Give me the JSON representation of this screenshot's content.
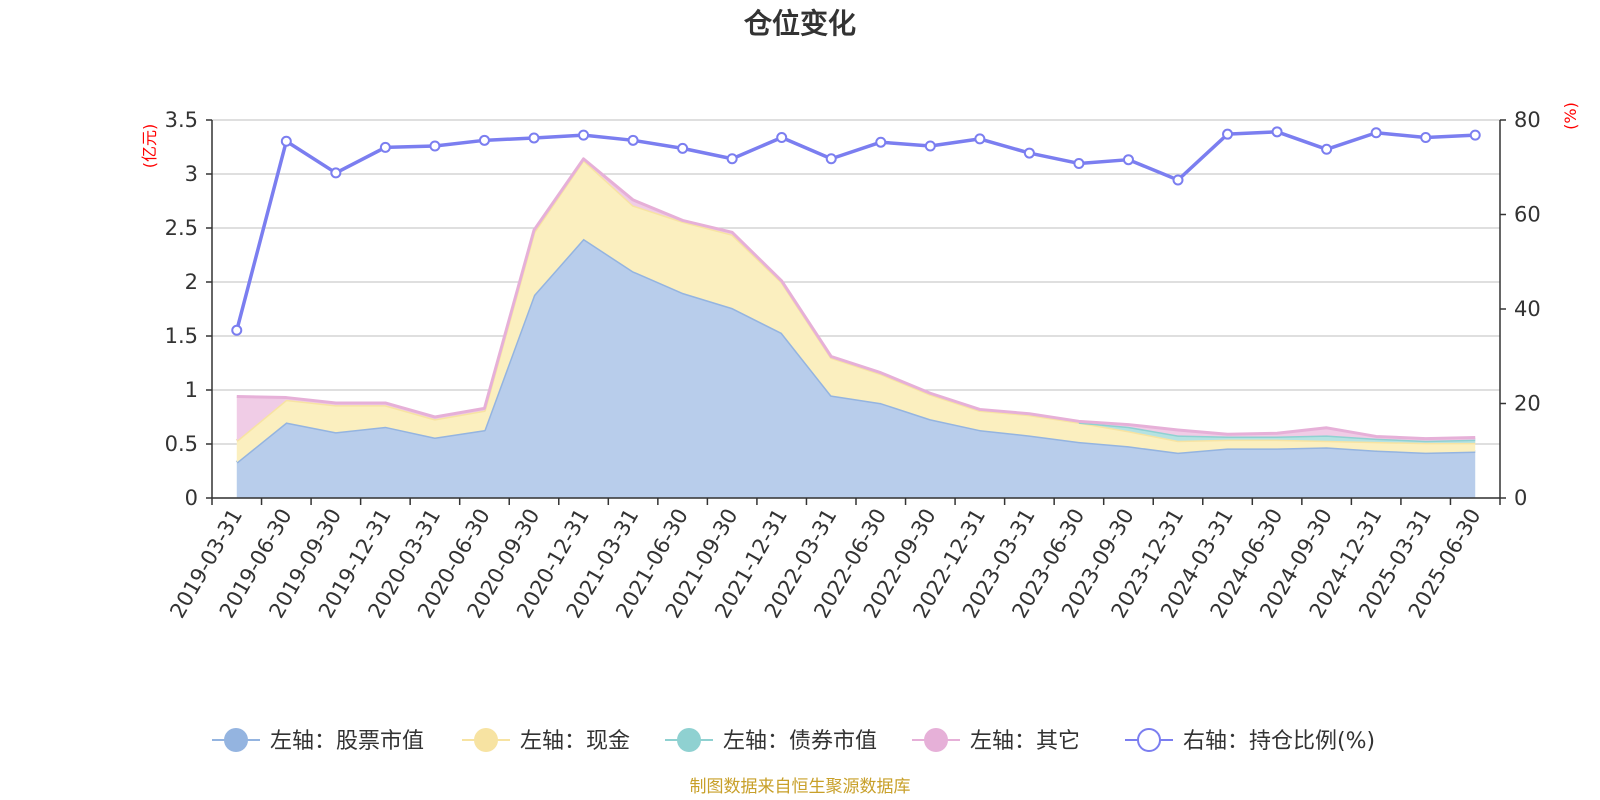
{
  "chart_data": {
    "type": "area",
    "title": "仓位变化",
    "left_axis": {
      "unit": "(亿元)",
      "min": 0,
      "max": 3.5,
      "ticks": [
        "0",
        "0.5",
        "1",
        "1.5",
        "2",
        "2.5",
        "3",
        "3.5"
      ]
    },
    "right_axis": {
      "unit": "(%)",
      "min": 0,
      "max": 80,
      "ticks": [
        "0",
        "20",
        "40",
        "60",
        "80"
      ]
    },
    "categories": [
      "2019-03-31",
      "2019-06-30",
      "2019-09-30",
      "2019-12-31",
      "2020-03-31",
      "2020-06-30",
      "2020-09-30",
      "2020-12-31",
      "2021-03-31",
      "2021-06-30",
      "2021-09-30",
      "2021-12-31",
      "2022-03-31",
      "2022-06-30",
      "2022-09-30",
      "2022-12-31",
      "2023-03-31",
      "2023-06-30",
      "2023-09-30",
      "2023-12-31",
      "2024-03-31",
      "2024-06-30",
      "2024-09-30",
      "2024-12-31",
      "2025-03-31",
      "2025-06-30"
    ],
    "series": [
      {
        "name": "左轴：股票市值",
        "axis": "left",
        "kind": "stacked-area",
        "color": "#94b4e0",
        "fill": "#b8cdeb",
        "values": [
          0.33,
          0.7,
          0.61,
          0.66,
          0.56,
          0.63,
          1.88,
          2.4,
          2.1,
          1.9,
          1.76,
          1.53,
          0.95,
          0.88,
          0.73,
          0.63,
          0.58,
          0.52,
          0.48,
          0.42,
          0.46,
          0.46,
          0.47,
          0.44,
          0.42,
          0.43
        ]
      },
      {
        "name": "左轴：现金",
        "axis": "left",
        "kind": "stacked-area",
        "color": "#f7e3a2",
        "fill": "#fbefbf",
        "values": [
          0.2,
          0.21,
          0.25,
          0.2,
          0.17,
          0.18,
          0.58,
          0.73,
          0.61,
          0.66,
          0.68,
          0.47,
          0.35,
          0.27,
          0.23,
          0.18,
          0.19,
          0.18,
          0.14,
          0.11,
          0.08,
          0.08,
          0.06,
          0.08,
          0.09,
          0.08
        ]
      },
      {
        "name": "左轴：债券市值",
        "axis": "left",
        "kind": "stacked-area",
        "color": "#8fd1d1",
        "fill": "#b5e2e2",
        "values": [
          0,
          0,
          0,
          0,
          0,
          0,
          0,
          0,
          0,
          0,
          0,
          0,
          0,
          0,
          0,
          0,
          0,
          0,
          0.04,
          0.05,
          0.03,
          0.03,
          0.05,
          0.03,
          0.02,
          0.03
        ]
      },
      {
        "name": "左轴：其它",
        "axis": "left",
        "kind": "stacked-area",
        "color": "#e6b0d8",
        "fill": "#f0cce6",
        "values": [
          0.41,
          0.02,
          0.02,
          0.02,
          0.02,
          0.02,
          0.02,
          0.01,
          0.05,
          0.01,
          0.02,
          0.01,
          0.01,
          0.01,
          0.01,
          0.01,
          0.01,
          0.01,
          0.02,
          0.05,
          0.02,
          0.03,
          0.07,
          0.02,
          0.02,
          0.02
        ]
      },
      {
        "name": "右轴：持仓比例(%)",
        "axis": "right",
        "kind": "line",
        "color": "#7b7ef0",
        "fill": "#ffffff",
        "values": [
          35.5,
          75.5,
          68.8,
          74.2,
          74.5,
          75.7,
          76.2,
          76.8,
          75.7,
          74.0,
          71.8,
          76.3,
          71.8,
          75.3,
          74.5,
          76.0,
          73.0,
          70.8,
          71.6,
          67.3,
          77.0,
          77.5,
          73.8,
          77.3,
          76.3,
          76.8
        ]
      }
    ]
  },
  "footer": {
    "source": "制图数据来自恒生聚源数据库"
  }
}
